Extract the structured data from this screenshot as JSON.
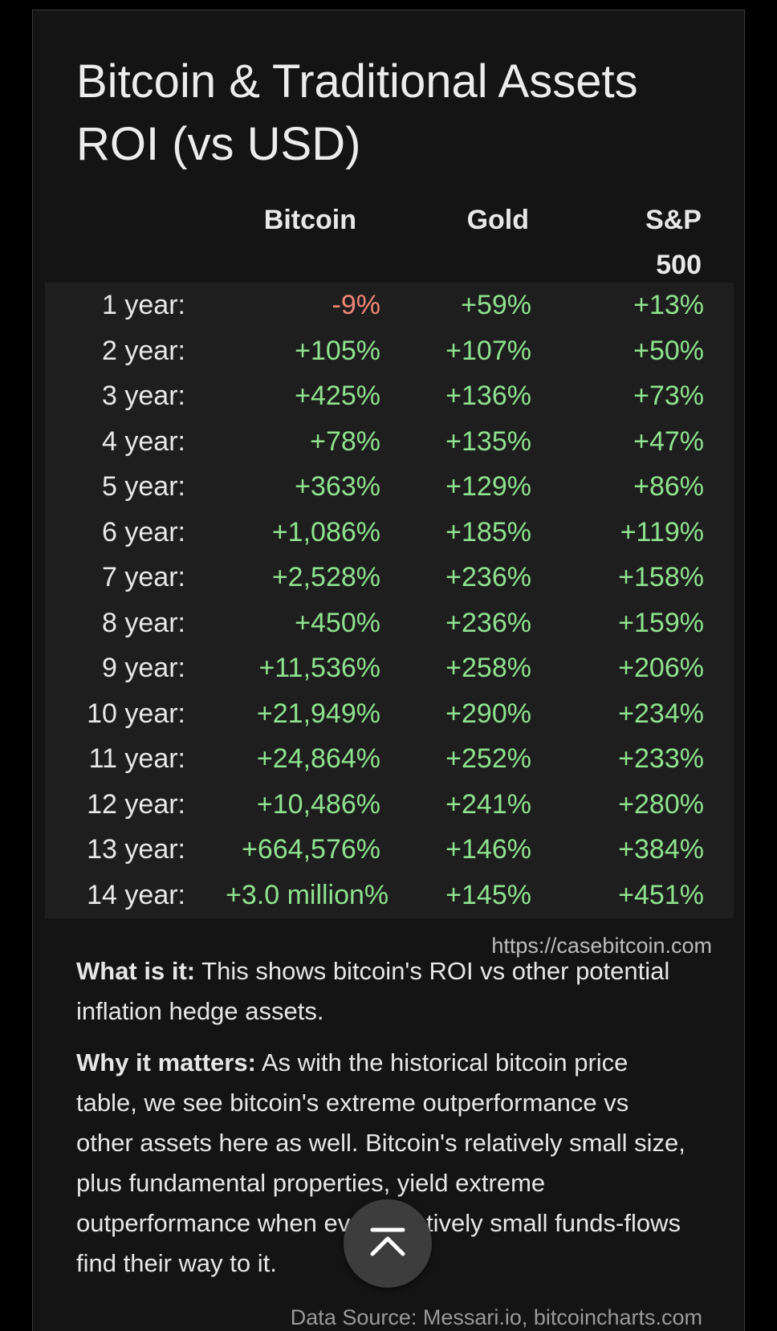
{
  "title_line1": "Bitcoin & Traditional Assets",
  "title_line2": "ROI (vs USD)",
  "columns": {
    "bitcoin": "Bitcoin",
    "gold": "Gold",
    "sp_line1": "S&P",
    "sp_line2": "500"
  },
  "rows": [
    {
      "label": "1 year:",
      "bitcoin": "-9%",
      "gold": "+59%",
      "sp500": "+13%"
    },
    {
      "label": "2 year:",
      "bitcoin": "+105%",
      "gold": "+107%",
      "sp500": "+50%"
    },
    {
      "label": "3 year:",
      "bitcoin": "+425%",
      "gold": "+136%",
      "sp500": "+73%"
    },
    {
      "label": "4 year:",
      "bitcoin": "+78%",
      "gold": "+135%",
      "sp500": "+47%"
    },
    {
      "label": "5 year:",
      "bitcoin": "+363%",
      "gold": "+129%",
      "sp500": "+86%"
    },
    {
      "label": "6 year:",
      "bitcoin": "+1,086%",
      "gold": "+185%",
      "sp500": "+119%"
    },
    {
      "label": "7 year:",
      "bitcoin": "+2,528%",
      "gold": "+236%",
      "sp500": "+158%"
    },
    {
      "label": "8 year:",
      "bitcoin": "+450%",
      "gold": "+236%",
      "sp500": "+159%"
    },
    {
      "label": "9 year:",
      "bitcoin": "+11,536%",
      "gold": "+258%",
      "sp500": "+206%"
    },
    {
      "label": "10 year:",
      "bitcoin": "+21,949%",
      "gold": "+290%",
      "sp500": "+234%"
    },
    {
      "label": "11 year:",
      "bitcoin": "+24,864%",
      "gold": "+252%",
      "sp500": "+233%"
    },
    {
      "label": "12 year:",
      "bitcoin": "+10,486%",
      "gold": "+241%",
      "sp500": "+280%"
    },
    {
      "label": "13 year:",
      "bitcoin": "+664,576%",
      "gold": "+146%",
      "sp500": "+384%"
    },
    {
      "label": "14 year:",
      "bitcoin": "+3.0 million%",
      "gold": "+145%",
      "sp500": "+451%"
    }
  ],
  "source_url": "https://casebitcoin.com",
  "what_is_it": {
    "label": "What is it:",
    "text": " This shows bitcoin's ROI vs other potential inflation hedge assets."
  },
  "why_it_matters": {
    "label": "Why it matters:",
    "text": " As with the historical bitcoin price table, we see bitcoin's extreme outperformance vs other assets here as well. Bitcoin's relatively small size, plus fundamental properties, yield extreme outperformance when even relatively small funds-flows find their way to it."
  },
  "data_source": "Data Source: Messari.io, bitcoincharts.com",
  "scroll_top_icon": "chevron-up-bar-icon",
  "colors": {
    "positive": "#8fe28f",
    "negative": "#f08678",
    "background": "#141414",
    "table_background": "#1e1e1e"
  }
}
